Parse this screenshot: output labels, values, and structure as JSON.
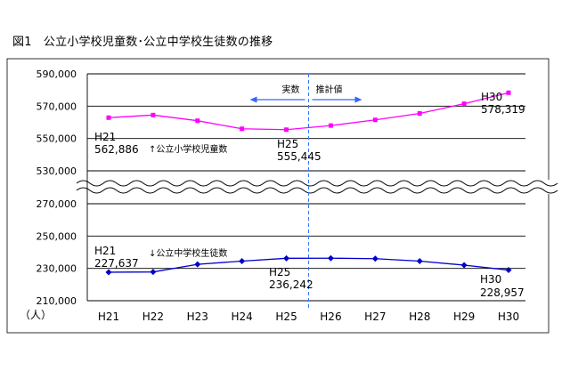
{
  "figure_title": "図1　公立小学校児童数･公立中学校生徒数の推移",
  "chart_data": {
    "type": "line",
    "categories": [
      "H21",
      "H22",
      "H23",
      "H24",
      "H25",
      "H26",
      "H27",
      "H28",
      "H29",
      "H30"
    ],
    "y_unit": "（人）",
    "axis_break": true,
    "grid": true,
    "upper_ylim": [
      530000,
      590000
    ],
    "upper_ticks": [
      "590,000",
      "570,000",
      "550,000",
      "530,000"
    ],
    "lower_ylim": [
      210000,
      270000
    ],
    "lower_ticks": [
      "270,000",
      "250,000",
      "230,000",
      "210,000"
    ],
    "divider_label_left": "実数",
    "divider_label_right": "推計値",
    "divider_after_category": "H25",
    "series": [
      {
        "name": "↑公立小学校児童数",
        "color": "#ff00ff",
        "panel": "upper",
        "values": [
          562886,
          564500,
          561000,
          556000,
          555445,
          558000,
          561500,
          565500,
          571500,
          578319
        ],
        "annotations": [
          {
            "category": "H21",
            "label": "H21",
            "value_label": "562,886"
          },
          {
            "category": "H25",
            "label": "H25",
            "value_label": "555,445"
          },
          {
            "category": "H30",
            "label": "H30",
            "value_label": "578,319"
          }
        ]
      },
      {
        "name": "↓公立中学校生徒数",
        "color": "#0000cc",
        "panel": "lower",
        "values": [
          227637,
          227800,
          232500,
          234500,
          236242,
          236300,
          236000,
          234500,
          232000,
          228957
        ],
        "annotations": [
          {
            "category": "H21",
            "label": "H21",
            "value_label": "227,637"
          },
          {
            "category": "H25",
            "label": "H25",
            "value_label": "236,242"
          },
          {
            "category": "H30",
            "label": "H30",
            "value_label": "228,957"
          }
        ]
      }
    ]
  }
}
